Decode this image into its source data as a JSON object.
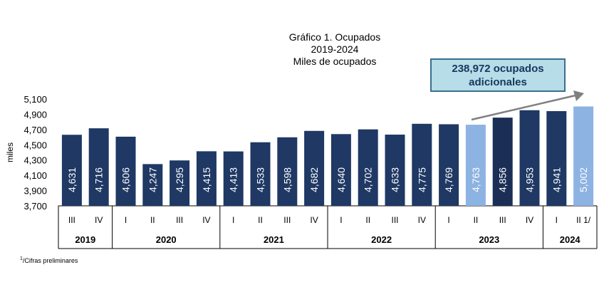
{
  "title_lines": [
    "Gráfico 1. Ocupados",
    "2019-2024",
    "Miles de ocupados"
  ],
  "annotation": {
    "line1": "238,972 ocupados",
    "line2": "adicionales"
  },
  "footnote": {
    "mark": "1",
    "text": "/Cifras preliminares"
  },
  "colors": {
    "dark": "#1f3864",
    "darker": "#1b2f56",
    "light": "#8db3e2",
    "arrow": "#808080",
    "grid": "#000000"
  },
  "chart_data": {
    "type": "bar",
    "ylabel": "miles",
    "ylim": [
      3700,
      5100
    ],
    "yticks": [
      3700,
      3900,
      4100,
      4300,
      4500,
      4700,
      4900,
      5100
    ],
    "ytick_labels": [
      "3,700",
      "3,900",
      "4,100",
      "4,300",
      "4,500",
      "4,700",
      "4,900",
      "5,100"
    ],
    "categories": [
      "III",
      "IV",
      "I",
      "II",
      "III",
      "IV",
      "I",
      "II",
      "III",
      "IV",
      "I",
      "II",
      "III",
      "IV",
      "I",
      "II",
      "III",
      "IV",
      "I",
      "II 1/"
    ],
    "values": [
      4631,
      4716,
      4606,
      4247,
      4295,
      4415,
      4413,
      4533,
      4598,
      4682,
      4640,
      4702,
      4633,
      4775,
      4769,
      4763,
      4856,
      4953,
      4941,
      5002
    ],
    "value_labels": [
      "4,631",
      "4,716",
      "4,606",
      "4,247",
      "4,295",
      "4,415",
      "4,413",
      "4,533",
      "4,598",
      "4,682",
      "4,640",
      "4,702",
      "4,633",
      "4,775",
      "4,769",
      "4,763",
      "4,856",
      "4,953",
      "4,941",
      "5,002"
    ],
    "highlight": [
      "dark",
      "dark",
      "dark",
      "dark",
      "dark",
      "dark",
      "dark",
      "dark",
      "dark",
      "dark",
      "dark",
      "dark",
      "dark",
      "dark",
      "dark",
      "light",
      "darker",
      "dark",
      "dark",
      "light"
    ],
    "years": [
      {
        "label": "2019",
        "start": 0,
        "end": 1
      },
      {
        "label": "2020",
        "start": 2,
        "end": 5
      },
      {
        "label": "2021",
        "start": 6,
        "end": 9
      },
      {
        "label": "2022",
        "start": 10,
        "end": 13
      },
      {
        "label": "2023",
        "start": 14,
        "end": 17
      },
      {
        "label": "2024",
        "start": 18,
        "end": 19
      }
    ]
  }
}
